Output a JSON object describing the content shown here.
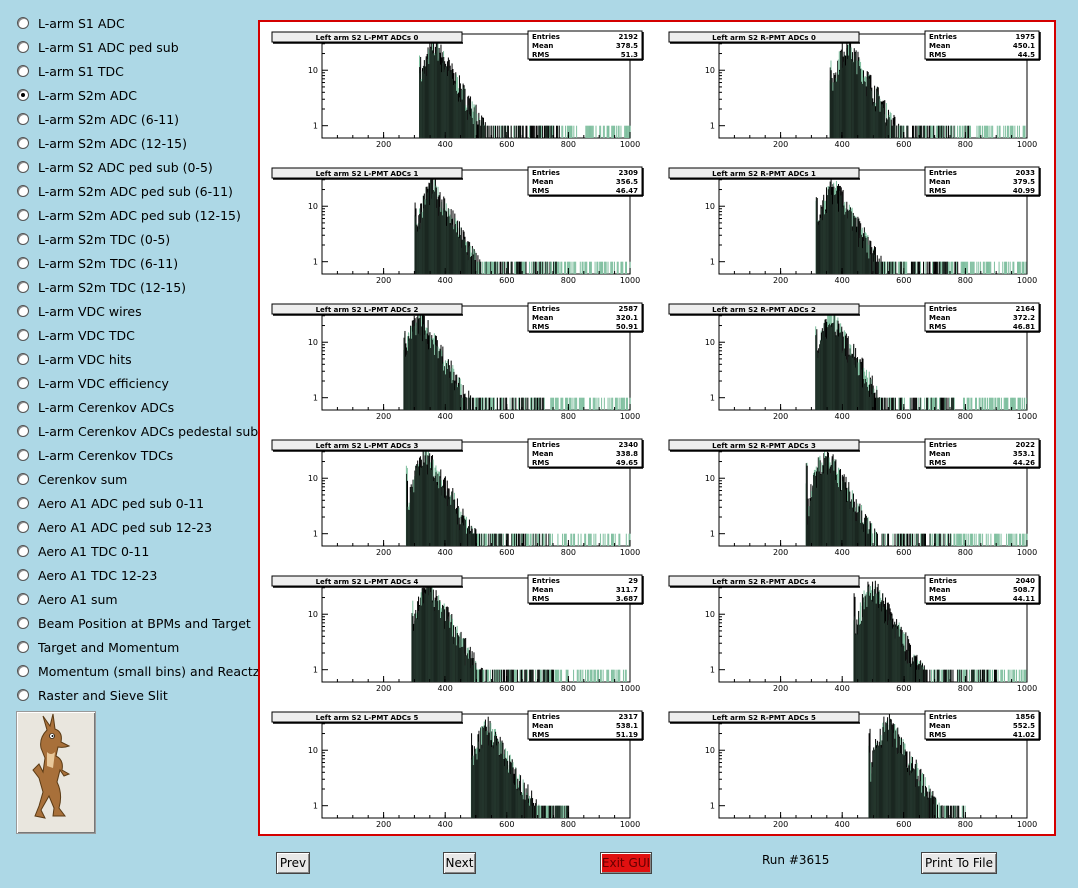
{
  "sidebar": {
    "selected_index": 3,
    "items": [
      "L-arm S1 ADC",
      "L-arm S1 ADC ped sub",
      "L-arm S1 TDC",
      "L-arm S2m ADC",
      "L-arm S2m ADC (6-11)",
      "L-arm S2m ADC (12-15)",
      "L-arm S2 ADC ped sub (0-5)",
      "L-arm S2m ADC ped sub (6-11)",
      "L-arm S2m ADC ped sub (12-15)",
      "L-arm S2m TDC (0-5)",
      "L-arm S2m TDC (6-11)",
      "L-arm S2m TDC (12-15)",
      "L-arm VDC wires",
      "L-arm VDC TDC",
      "L-arm VDC hits",
      "L-arm VDC efficiency",
      "L-arm Cerenkov ADCs",
      "L-arm Cerenkov ADCs pedestal sub",
      "L-arm Cerenkov TDCs",
      "Cerenkov sum",
      "Aero A1 ADC ped sub 0-11",
      "Aero A1 ADC ped sub 12-23",
      "Aero A1 TDC 0-11",
      "Aero A1 TDC 12-23",
      "Aero A1 sum",
      "Beam Position at BPMs and Target",
      "Target and Momentum",
      "Momentum (small bins) and Reactz",
      "Raster and Sieve Slit"
    ],
    "logo_icon": "coyote-logo-icon"
  },
  "buttons": {
    "prev": "Prev",
    "next": "Next",
    "exit": "Exit GUI",
    "print": "Print To File"
  },
  "run_label": "Run #3615",
  "colors": {
    "background": "#add8e6",
    "canvas_border": "#d40000",
    "exit_button": "#e01010",
    "hist_fill": "#7fbf9f",
    "hist_line": "#000000"
  },
  "chart_data": [
    {
      "type": "bar",
      "title": "Left arm S2 L-PMT ADCs 0",
      "stats": {
        "Entries": "2192",
        "Mean": "378.5",
        "RMS": "51.3"
      },
      "xlim": [
        0,
        1000
      ],
      "xticks": [
        "200",
        "400",
        "600",
        "800",
        "1000"
      ],
      "yticks": [
        "10",
        "1"
      ],
      "log_y": true,
      "peak": [
        370,
        30
      ],
      "tail_end": 1000
    },
    {
      "type": "bar",
      "title": "Left arm S2 R-PMT ADCs 0",
      "stats": {
        "Entries": "1975",
        "Mean": "450.1",
        "RMS": "44.5"
      },
      "xlim": [
        0,
        1000
      ],
      "xticks": [
        "200",
        "400",
        "600",
        "800",
        "1000"
      ],
      "yticks": [
        "10",
        "1"
      ],
      "log_y": true,
      "peak": [
        420,
        30
      ],
      "tail_end": 1000
    },
    {
      "type": "bar",
      "title": "Left arm S2 L-PMT ADCs 1",
      "stats": {
        "Entries": "2309",
        "Mean": "356.5",
        "RMS": "46.47"
      },
      "xlim": [
        0,
        1000
      ],
      "xticks": [
        "200",
        "400",
        "600",
        "800",
        "1000"
      ],
      "yticks": [
        "10",
        "1"
      ],
      "log_y": true,
      "peak": [
        360,
        25
      ],
      "tail_end": 1000
    },
    {
      "type": "bar",
      "title": "Left arm S2 R-PMT ADCs 1",
      "stats": {
        "Entries": "2033",
        "Mean": "379.5",
        "RMS": "40.99"
      },
      "xlim": [
        0,
        1000
      ],
      "xticks": [
        "200",
        "400",
        "600",
        "800",
        "1000"
      ],
      "yticks": [
        "10",
        "1"
      ],
      "log_y": true,
      "peak": [
        375,
        25
      ],
      "tail_end": 1000
    },
    {
      "type": "bar",
      "title": "Left arm S2 L-PMT ADCs 2",
      "stats": {
        "Entries": "2587",
        "Mean": "320.1",
        "RMS": "50.91"
      },
      "xlim": [
        0,
        1000
      ],
      "xticks": [
        "200",
        "400",
        "600",
        "800",
        "1000"
      ],
      "yticks": [
        "10",
        "1"
      ],
      "log_y": true,
      "peak": [
        320,
        30
      ],
      "tail_end": 1000
    },
    {
      "type": "bar",
      "title": "Left arm S2 R-PMT ADCs 2",
      "stats": {
        "Entries": "2164",
        "Mean": "372.2",
        "RMS": "46.81"
      },
      "xlim": [
        0,
        1000
      ],
      "xticks": [
        "200",
        "400",
        "600",
        "800",
        "1000"
      ],
      "yticks": [
        "10",
        "1"
      ],
      "log_y": true,
      "peak": [
        370,
        30
      ],
      "tail_end": 1000
    },
    {
      "type": "bar",
      "title": "Left arm S2 L-PMT ADCs 3",
      "stats": {
        "Entries": "2340",
        "Mean": "338.8",
        "RMS": "49.65"
      },
      "xlim": [
        0,
        1000
      ],
      "xticks": [
        "200",
        "400",
        "600",
        "800",
        "1000"
      ],
      "yticks": [
        "10",
        "1"
      ],
      "log_y": true,
      "peak": [
        340,
        30
      ],
      "tail_end": 1000
    },
    {
      "type": "bar",
      "title": "Left arm S2 R-PMT ADCs 3",
      "stats": {
        "Entries": "2022",
        "Mean": "353.1",
        "RMS": "44.26"
      },
      "xlim": [
        0,
        1000
      ],
      "xticks": [
        "200",
        "400",
        "600",
        "800",
        "1000"
      ],
      "yticks": [
        "10",
        "1"
      ],
      "log_y": true,
      "peak": [
        350,
        30
      ],
      "tail_end": 1000
    },
    {
      "type": "bar",
      "title": "Left arm S2 L-PMT ADCs 4",
      "stats": {
        "Entries": "29",
        "Mean": "311.7",
        "RMS": "3.687"
      },
      "xlim": [
        0,
        1000
      ],
      "xticks": [
        "200",
        "400",
        "600",
        "800",
        "1000"
      ],
      "yticks": [
        "10",
        "1"
      ],
      "log_y": true,
      "peak": [
        350,
        35
      ],
      "tail_end": 1000
    },
    {
      "type": "bar",
      "title": "Left arm S2 R-PMT ADCs 4",
      "stats": {
        "Entries": "2040",
        "Mean": "508.7",
        "RMS": "44.11"
      },
      "xlim": [
        0,
        1000
      ],
      "xticks": [
        "200",
        "400",
        "600",
        "800",
        "1000"
      ],
      "yticks": [
        "10",
        "1"
      ],
      "log_y": true,
      "peak": [
        500,
        35
      ],
      "tail_end": 1000
    },
    {
      "type": "bar",
      "title": "Left arm S2 L-PMT ADCs 5",
      "stats": {
        "Entries": "2317",
        "Mean": "538.1",
        "RMS": "51.19"
      },
      "xlim": [
        0,
        1000
      ],
      "xticks": [
        "200",
        "400",
        "600",
        "800",
        "1000"
      ],
      "yticks": [
        "10",
        "1"
      ],
      "log_y": true,
      "peak": [
        540,
        30
      ],
      "tail_end": 800
    },
    {
      "type": "bar",
      "title": "Left arm S2 R-PMT ADCs 5",
      "stats": {
        "Entries": "1856",
        "Mean": "552.5",
        "RMS": "41.02"
      },
      "xlim": [
        0,
        1000
      ],
      "xticks": [
        "200",
        "400",
        "600",
        "800",
        "1000"
      ],
      "yticks": [
        "10",
        "1"
      ],
      "log_y": true,
      "peak": [
        550,
        35
      ],
      "tail_end": 800
    }
  ]
}
